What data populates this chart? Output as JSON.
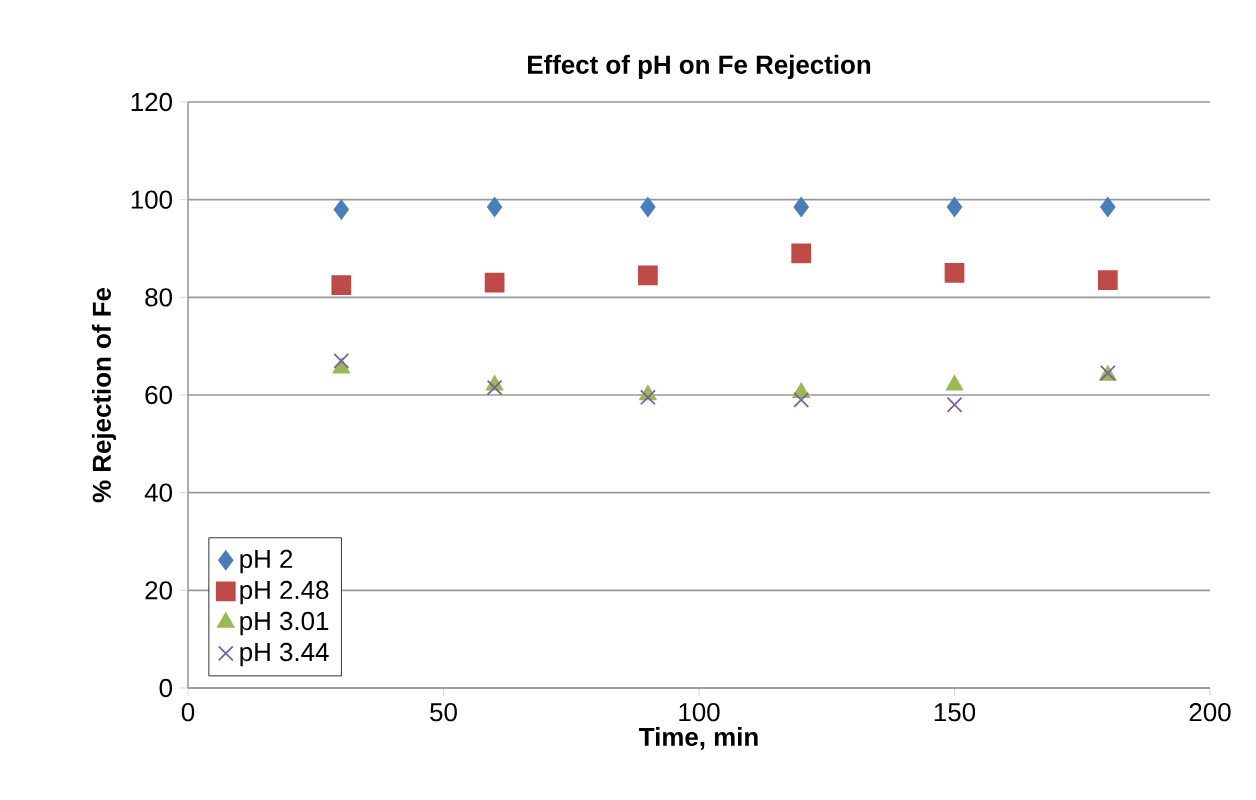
{
  "chart_data": {
    "type": "scatter",
    "title": "Effect of pH on Fe Rejection",
    "xlabel": "Time, min",
    "ylabel": "% Rejection of Fe",
    "x": [
      30,
      60,
      90,
      120,
      150,
      180
    ],
    "series": [
      {
        "name": "pH 2",
        "color": "#4a7ebb",
        "marker": "diamond",
        "values": [
          98,
          98.5,
          98.5,
          98.5,
          98.5,
          98.5
        ]
      },
      {
        "name": "pH 2.48",
        "color": "#be4b48",
        "marker": "square",
        "values": [
          82.5,
          83,
          84.5,
          89,
          85,
          83.5
        ]
      },
      {
        "name": "pH 3.01",
        "color": "#98b954",
        "marker": "triangle",
        "values": [
          65.5,
          62,
          60,
          60.5,
          62,
          64
        ]
      },
      {
        "name": "pH 3.44",
        "color": "#7d5fa0",
        "marker": "cross",
        "values": [
          67,
          61.5,
          59.5,
          59,
          58,
          64.5
        ]
      }
    ],
    "xlim": [
      0,
      200
    ],
    "xticks": [
      0,
      50,
      100,
      150,
      200
    ],
    "ylim": [
      0,
      120
    ],
    "yticks": [
      0,
      20,
      40,
      60,
      80,
      100,
      120
    ],
    "grid": "y",
    "legend": "bottom left"
  }
}
